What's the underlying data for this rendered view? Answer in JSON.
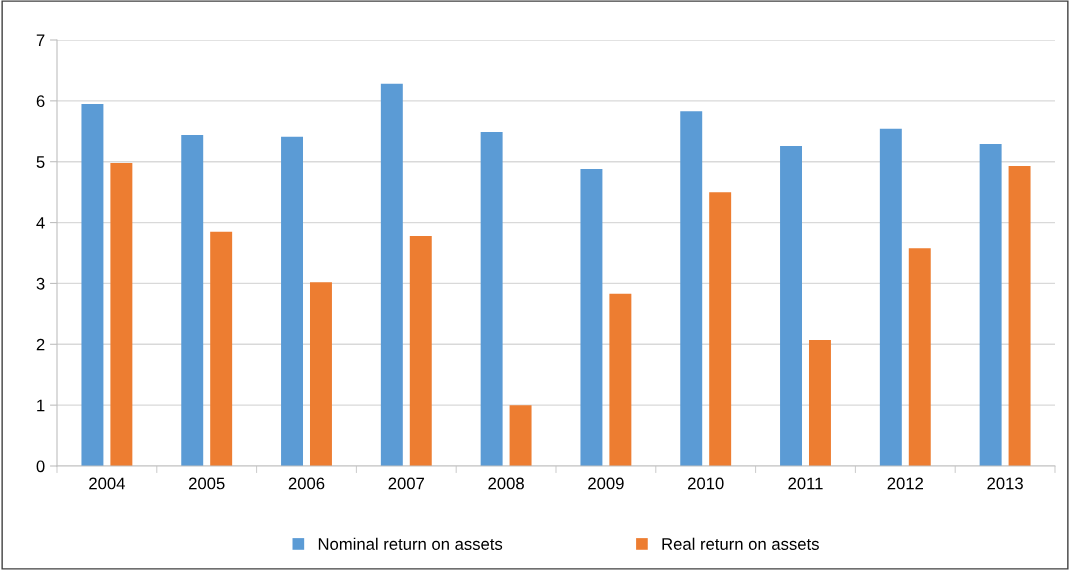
{
  "chart_data": {
    "type": "bar",
    "categories": [
      "2004",
      "2005",
      "2006",
      "2007",
      "2008",
      "2009",
      "2010",
      "2011",
      "2012",
      "2013"
    ],
    "series": [
      {
        "name": "Nominal return on assets",
        "color": "#5b9bd5",
        "values": [
          5.95,
          5.44,
          5.41,
          6.28,
          5.49,
          4.88,
          5.83,
          5.26,
          5.54,
          5.29
        ]
      },
      {
        "name": "Real return on assets",
        "color": "#ed7d31",
        "values": [
          4.98,
          3.85,
          3.02,
          3.78,
          1.0,
          2.83,
          4.5,
          2.07,
          3.58,
          4.93
        ]
      }
    ],
    "ylim": [
      0,
      7
    ],
    "yticks": [
      0,
      1,
      2,
      3,
      4,
      5,
      6,
      7
    ],
    "grid": "y",
    "legend": "bottom"
  }
}
